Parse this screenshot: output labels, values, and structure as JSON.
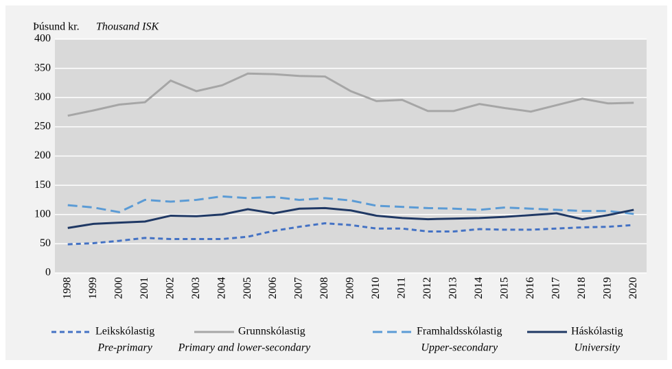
{
  "chart_data": {
    "type": "line",
    "y_label": "Þúsund kr.",
    "y_label_en": "Thousand ISK",
    "categories": [
      "1998",
      "1999",
      "2000",
      "2001",
      "2002",
      "2003",
      "2004",
      "2005",
      "2006",
      "2007",
      "2008",
      "2009",
      "2010",
      "2011",
      "2012",
      "2013",
      "2014",
      "2015",
      "2016",
      "2017",
      "2018",
      "2019",
      "2020"
    ],
    "series": [
      {
        "name": "Leikskólastig",
        "name_en": "Pre-primary",
        "color": "#4472c4",
        "style": "dotted",
        "values": [
          49,
          51,
          55,
          60,
          58,
          58,
          58,
          62,
          72,
          79,
          85,
          82,
          76,
          76,
          71,
          71,
          75,
          74,
          74,
          76,
          78,
          79,
          82
        ]
      },
      {
        "name": "Grunnskólastig",
        "name_en": "Primary and lower-secondary",
        "color": "#a6a6a6",
        "style": "solid",
        "values": [
          269,
          278,
          288,
          292,
          329,
          311,
          321,
          341,
          340,
          337,
          336,
          311,
          294,
          296,
          277,
          277,
          289,
          282,
          276,
          287,
          298,
          290,
          291
        ]
      },
      {
        "name": "Framhaldsskólastig",
        "name_en": "Upper-secondary",
        "color": "#5b9bd5",
        "style": "dashed",
        "values": [
          116,
          112,
          104,
          125,
          122,
          125,
          131,
          128,
          130,
          125,
          128,
          124,
          115,
          113,
          111,
          110,
          108,
          112,
          110,
          108,
          106,
          106,
          101
        ]
      },
      {
        "name": "Háskólastig",
        "name_en": "University",
        "color": "#1f3864",
        "style": "solid",
        "values": [
          77,
          84,
          86,
          88,
          98,
          97,
          100,
          109,
          102,
          110,
          111,
          107,
          98,
          94,
          92,
          93,
          94,
          96,
          99,
          102,
          92,
          99,
          108
        ]
      }
    ],
    "ylim": [
      0,
      400
    ],
    "yticks": [
      0,
      50,
      100,
      150,
      200,
      250,
      300,
      350,
      400
    ],
    "grid": true
  }
}
